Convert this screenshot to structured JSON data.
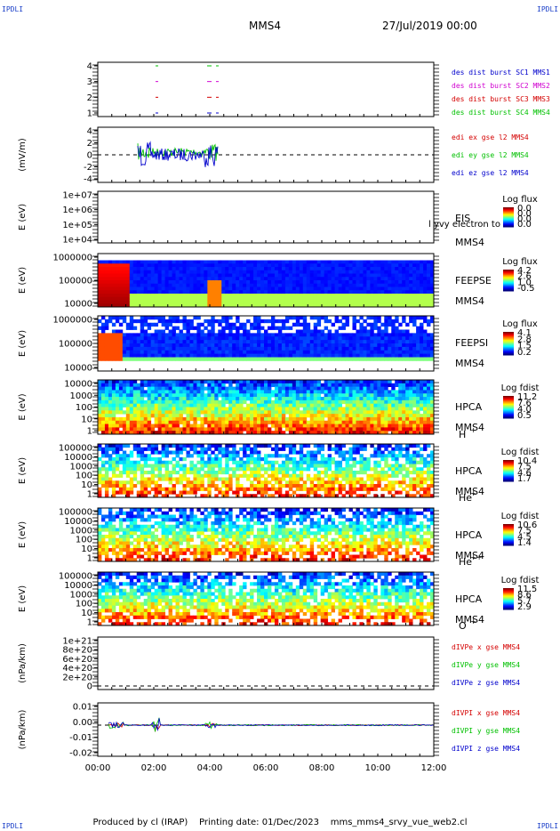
{
  "corner_label": "IPDLI",
  "header": {
    "spacecraft": "MMS4",
    "date": "27/Jul/2019 00:00"
  },
  "footer": {
    "produced_by": "Produced by cl (IRAP)",
    "printing_date": "Printing date: 01/Dec/2023",
    "script": "mms_mms4_srvy_vue_web2.cl"
  },
  "colors": {
    "red": "#d40000",
    "green": "#00c000",
    "blue": "#0000cc",
    "magenta": "#d000d0"
  },
  "chart_data": [
    {
      "type": "scatter",
      "ylim": [
        0.5,
        4.5
      ],
      "yticks": [
        "4",
        "3",
        "2",
        "1"
      ],
      "legend": [
        {
          "text": "des dist burst SC1 MMS1",
          "color": "blue"
        },
        {
          "text": "des dist burst SC2 MMS2",
          "color": "magenta"
        },
        {
          "text": "des dist burst SC3 MMS3",
          "color": "red"
        },
        {
          "text": "des dist burst SC4 MMS4",
          "color": "green"
        }
      ]
    },
    {
      "type": "line",
      "ylabel": "(mV/m)",
      "ylim": [
        -5,
        5
      ],
      "yticks": [
        "4",
        "2",
        "0",
        "-2",
        "-4"
      ],
      "legend": [
        {
          "text": "edi ex gse l2 MMS4",
          "color": "red"
        },
        {
          "text": "edi ey gse l2 MMS4",
          "color": "green"
        },
        {
          "text": "edi ez gse l2 MMS4",
          "color": "blue"
        }
      ]
    },
    {
      "type": "heatmap",
      "ylabel": "E (eV)",
      "yticks": [
        "1e+07",
        "1e+06",
        "1e+05",
        "1e+04"
      ],
      "side": [
        "EIS",
        "MMS4"
      ],
      "overlay": "l yvy electron to",
      "colorbar": {
        "title": "Log flux",
        "ticks": [
          "0.0",
          "0.0",
          "0.0",
          "0.0"
        ]
      }
    },
    {
      "type": "heatmap",
      "ylabel": "E (eV)",
      "yticks": [
        "1000000",
        "100000",
        "10000"
      ],
      "side": [
        "FEEPSE",
        "MMS4"
      ],
      "colorbar": {
        "title": "Log flux",
        "ticks": [
          "4.2",
          "2.6",
          "1.0",
          "-0.5"
        ]
      }
    },
    {
      "type": "heatmap",
      "ylabel": "E (eV)",
      "yticks": [
        "1000000",
        "100000",
        "10000"
      ],
      "side": [
        "FEEPSI",
        "MMS4"
      ],
      "colorbar": {
        "title": "Log flux",
        "ticks": [
          "4.1",
          "2.8",
          "1.5",
          "0.2"
        ]
      }
    },
    {
      "type": "heatmap",
      "ylabel": "E (eV)",
      "yticks": [
        "10000",
        "1000",
        "100",
        "10",
        "1"
      ],
      "side": [
        "HPCA",
        "MMS4"
      ],
      "species": "H",
      "charge": "+",
      "colorbar": {
        "title": "Log fdist",
        "ticks": [
          "11.2",
          "7.6",
          "4.0",
          "0.5"
        ]
      }
    },
    {
      "type": "heatmap",
      "ylabel": "E (eV)",
      "yticks": [
        "100000",
        "10000",
        "1000",
        "100",
        "10",
        "1"
      ],
      "side": [
        "HPCA",
        "MMS4"
      ],
      "species": "He",
      "charge": "+",
      "colorbar": {
        "title": "Log fdist",
        "ticks": [
          "10.4",
          "7.5",
          "4.6",
          "1.7"
        ]
      }
    },
    {
      "type": "heatmap",
      "ylabel": "E (eV)",
      "yticks": [
        "100000",
        "10000",
        "1000",
        "100",
        "10",
        "1"
      ],
      "side": [
        "HPCA",
        "MMS4"
      ],
      "species": "He",
      "charge": "++",
      "colorbar": {
        "title": "Log fdist",
        "ticks": [
          "10.6",
          "7.5",
          "4.5",
          "1.4"
        ]
      }
    },
    {
      "type": "heatmap",
      "ylabel": "E (eV)",
      "yticks": [
        "100000",
        "10000",
        "1000",
        "100",
        "10",
        "1"
      ],
      "side": [
        "HPCA",
        "MMS4"
      ],
      "species": "O",
      "charge": "+",
      "colorbar": {
        "title": "Log fdist",
        "ticks": [
          "11.5",
          "8.6",
          "5.7",
          "2.9"
        ]
      }
    },
    {
      "type": "line",
      "ylabel": "(nPa/km)",
      "ylim": [
        -1e+20,
        1.1e+21
      ],
      "yticks": [
        "1e+21",
        "8e+20",
        "6e+20",
        "4e+20",
        "2e+20",
        "0"
      ],
      "legend": [
        {
          "text": "dIVPe x gse MMS4",
          "color": "red"
        },
        {
          "text": "dIVPe y gse MMS4",
          "color": "green"
        },
        {
          "text": "dIVPe z gse MMS4",
          "color": "blue"
        }
      ]
    },
    {
      "type": "line",
      "ylabel": "(nPa/km)",
      "ylim": [
        -0.025,
        0.015
      ],
      "yticks": [
        "0.01",
        "0.00",
        "-0.01",
        "-0.02"
      ],
      "legend": [
        {
          "text": "dIVPI x gse MMS4",
          "color": "red"
        },
        {
          "text": "dIVPI y gse MMS4",
          "color": "green"
        },
        {
          "text": "dIVPI z gse MMS4",
          "color": "blue"
        }
      ]
    }
  ],
  "xaxis": {
    "ticks": [
      "00:00",
      "02:00",
      "04:00",
      "06:00",
      "08:00",
      "10:00",
      "12:00"
    ]
  }
}
